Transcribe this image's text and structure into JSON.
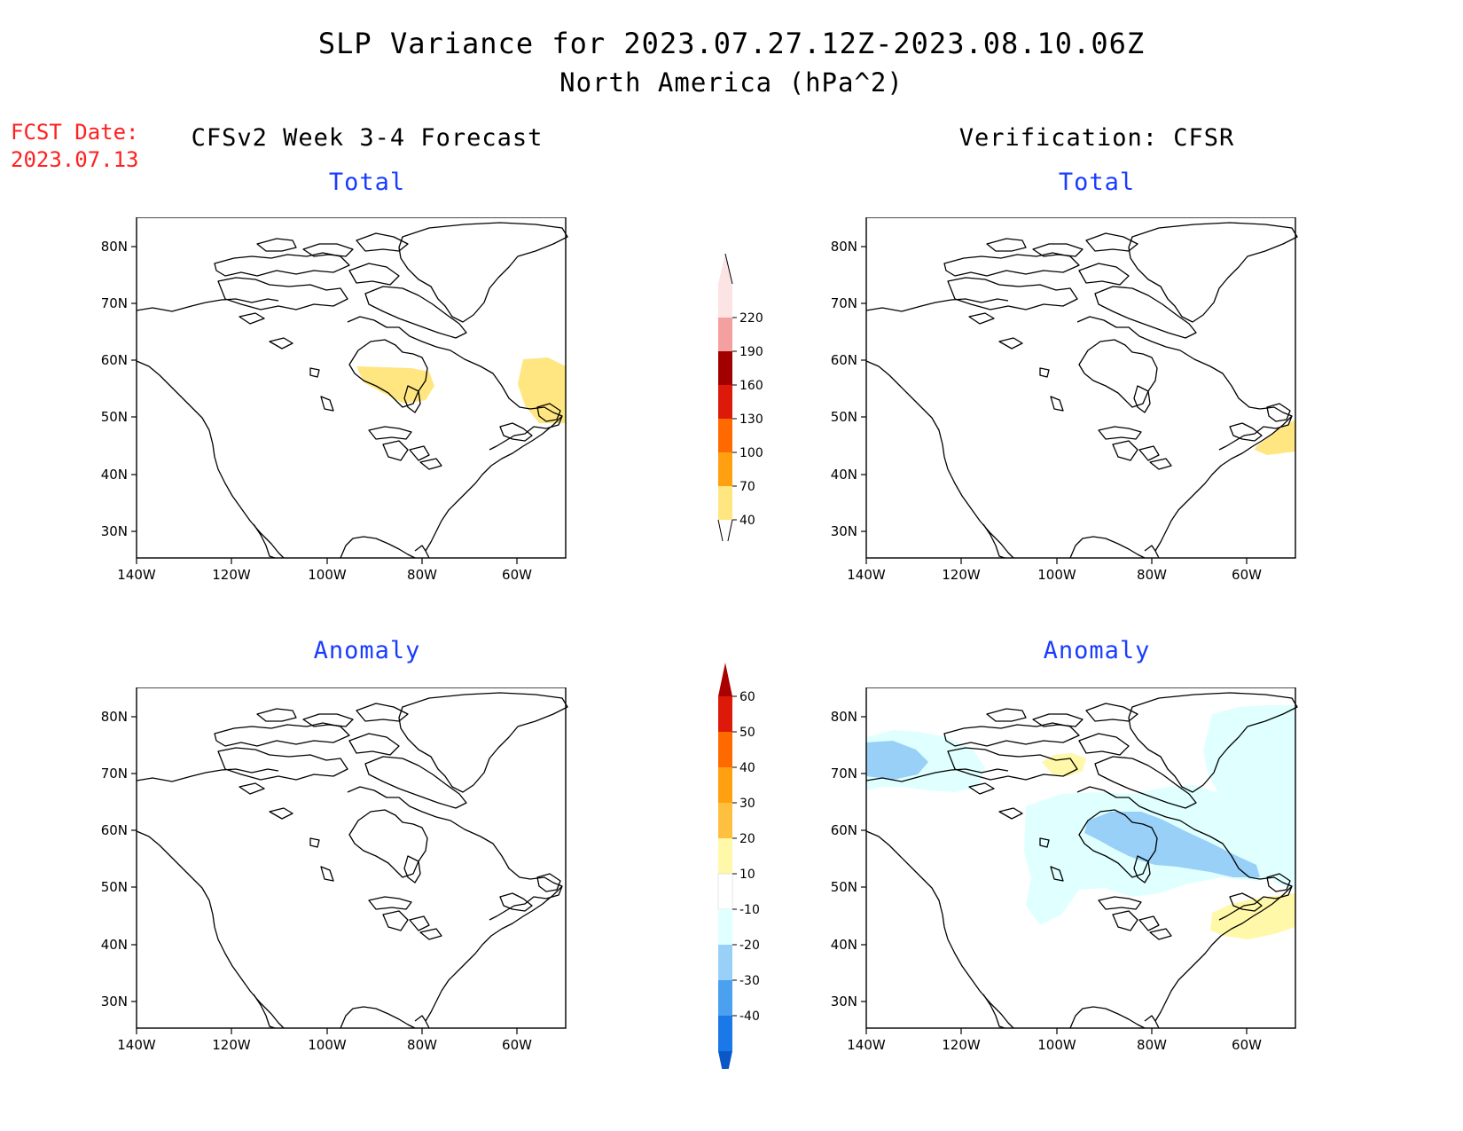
{
  "title": {
    "line1": "SLP Variance for 2023.07.27.12Z-2023.08.10.06Z",
    "line2": "North America (hPa^2)"
  },
  "fcst_date": {
    "label": "FCST Date:",
    "value": "2023.07.13"
  },
  "columns": {
    "left": "CFSv2 Week 3-4 Forecast",
    "right": "Verification: CFSR"
  },
  "panels": {
    "forecast_total": {
      "subtitle": "Total",
      "shaded_regions": [
        "Hudson Bay southwest (yellow 40-70)",
        "Labrador / Gulf of St. Lawrence (yellow 40-70)"
      ]
    },
    "verification_total": {
      "subtitle": "Total",
      "shaded_regions": [
        "Nova Scotia offshore (yellow 40-70)"
      ]
    },
    "forecast_anomaly": {
      "subtitle": "Anomaly",
      "shaded_regions": []
    },
    "verification_anomaly": {
      "subtitle": "Anomaly",
      "shaded_regions": [
        "Alaska / Beaufort (light blue)",
        "Hudson Bay region (blue -20 to -30)",
        "Arctic archipelago (yellow)",
        "Nova Scotia offshore (yellow)"
      ]
    }
  },
  "axes": {
    "lat_labels": [
      "80N",
      "70N",
      "60N",
      "50N",
      "40N",
      "30N"
    ],
    "lon_labels": [
      "140W",
      "120W",
      "100W",
      "80W",
      "60W"
    ]
  },
  "colorbar_total": {
    "levels": [
      "220",
      "190",
      "160",
      "130",
      "100",
      "70",
      "40"
    ],
    "colors": [
      "#fde4e4",
      "#f4a0a0",
      "#a00000",
      "#dd1a0a",
      "#ff6a00",
      "#ffa010",
      "#ffe680"
    ]
  },
  "colorbar_anomaly": {
    "levels": [
      "60",
      "50",
      "40",
      "30",
      "20",
      "10",
      "-10",
      "-20",
      "-30",
      "-40"
    ],
    "colors": [
      "#aa0000",
      "#dd1a0a",
      "#ff6a00",
      "#ffa010",
      "#ffc040",
      "#fff8a8",
      "#ffffff",
      "#e0ffff",
      "#98d0f8",
      "#4ba0f0",
      "#1a78e8",
      "#0a58c8"
    ]
  },
  "colors": {
    "fcst_date": "#ff2020",
    "subtitle": "#1a3cff",
    "yellow_fill": "#ffe680",
    "light_blue_fill": "#e0ffff",
    "mid_blue_fill": "#98d0f8"
  }
}
